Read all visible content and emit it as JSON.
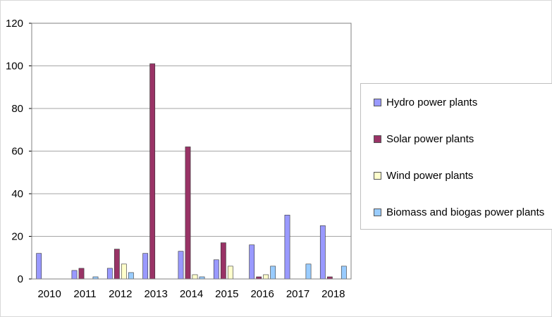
{
  "chart_data": {
    "type": "bar",
    "title": "",
    "xlabel": "",
    "ylabel": "",
    "categories": [
      "2010",
      "2011",
      "2012",
      "2013",
      "2014",
      "2015",
      "2016",
      "2017",
      "2018"
    ],
    "ylim": [
      0,
      120
    ],
    "yticks": [
      0,
      20,
      40,
      60,
      80,
      100,
      120
    ],
    "grid": true,
    "legend_position": "right",
    "series": [
      {
        "name": "Hydro power plants",
        "color": "#9999ff",
        "values": [
          12,
          4,
          5,
          12,
          13,
          9,
          16,
          30,
          25
        ]
      },
      {
        "name": "Solar power plants",
        "color": "#993366",
        "values": [
          0,
          5,
          14,
          101,
          62,
          17,
          1,
          0,
          1
        ]
      },
      {
        "name": "Wind power plants",
        "color": "#ffffcc",
        "values": [
          0,
          0,
          7,
          0,
          2,
          6,
          2,
          0,
          0
        ]
      },
      {
        "name": "Biomass and biogas power plants",
        "color": "#99ccff",
        "values": [
          0,
          1,
          3,
          0,
          1,
          0,
          6,
          7,
          6
        ]
      }
    ]
  }
}
